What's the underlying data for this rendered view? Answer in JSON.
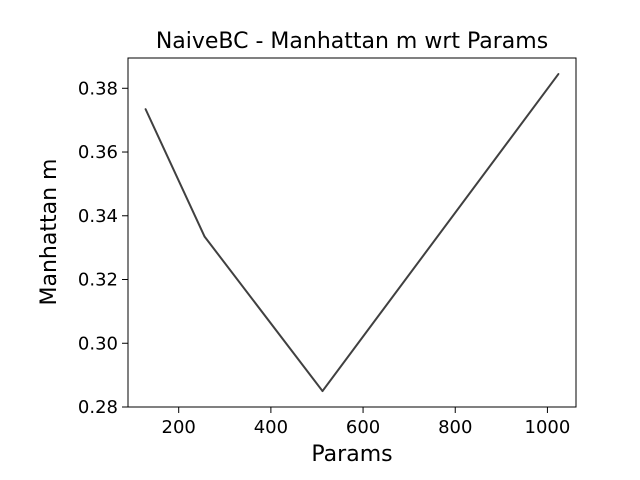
{
  "chart_data": {
    "type": "line",
    "title": "NaiveBC - Manhattan m wrt Params",
    "xlabel": "Params",
    "ylabel": "Manhattan m",
    "x": [
      128,
      256,
      512,
      1024
    ],
    "series": [
      {
        "values": [
          0.3735,
          0.3335,
          0.285,
          0.3845
        ],
        "color": "#404040"
      }
    ],
    "xlim": [
      90,
      1062
    ],
    "ylim": [
      0.28,
      0.3895
    ],
    "xticks": [
      200,
      400,
      600,
      800,
      1000
    ],
    "yticks": [
      0.28,
      0.3,
      0.32,
      0.34,
      0.36,
      0.38
    ],
    "xtick_labels": [
      "200",
      "400",
      "600",
      "800",
      "1000"
    ],
    "ytick_labels": [
      "0.28",
      "0.30",
      "0.32",
      "0.34",
      "0.36",
      "0.38"
    ],
    "grid": false,
    "legend": "none"
  }
}
